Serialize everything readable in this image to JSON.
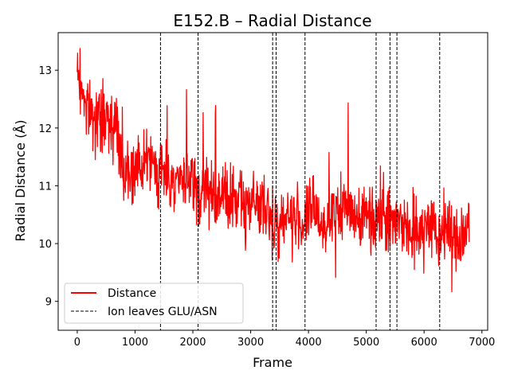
{
  "chart_data": {
    "type": "line",
    "title": "E152.B – Radial Distance",
    "xlabel": "Frame",
    "ylabel": "Radial Distance (Å)",
    "xlim": [
      -330,
      7100
    ],
    "ylim": [
      8.5,
      13.65
    ],
    "xticks": [
      0,
      1000,
      2000,
      3000,
      4000,
      5000,
      6000,
      7000
    ],
    "xtick_labels": [
      "0",
      "1000",
      "2000",
      "3000",
      "4000",
      "5000",
      "6000",
      "7000"
    ],
    "yticks": [
      9,
      10,
      11,
      12,
      13
    ],
    "ytick_labels": [
      "9",
      "10",
      "11",
      "12",
      "13"
    ],
    "grid": false,
    "legend_position": "lower-left",
    "series": [
      {
        "name": "Distance",
        "color": "#ff0000",
        "style": "solid",
        "x": [
          0,
          100,
          200,
          300,
          400,
          500,
          600,
          700,
          800,
          900,
          1000,
          1100,
          1200,
          1300,
          1400,
          1500,
          1600,
          1700,
          1800,
          1900,
          2000,
          2100,
          2200,
          2300,
          2400,
          2500,
          2600,
          2700,
          2800,
          2900,
          3000,
          3100,
          3200,
          3300,
          3400,
          3500,
          3600,
          3700,
          3800,
          3900,
          4000,
          4100,
          4200,
          4300,
          4400,
          4500,
          4600,
          4700,
          4800,
          4900,
          5000,
          5100,
          5200,
          5300,
          5400,
          5500,
          5600,
          5700,
          5800,
          5900,
          6000,
          6100,
          6200,
          6300,
          6400,
          6500,
          6600,
          6700,
          6780
        ],
        "y": [
          13.0,
          12.6,
          12.3,
          12.2,
          12.1,
          12.2,
          12.1,
          12.0,
          11.2,
          11.3,
          11.4,
          11.3,
          11.4,
          11.3,
          11.2,
          11.3,
          11.1,
          11.2,
          11.0,
          11.1,
          11.0,
          10.8,
          11.0,
          10.9,
          10.9,
          10.8,
          10.9,
          10.7,
          10.8,
          10.6,
          10.8,
          10.7,
          10.6,
          10.5,
          10.4,
          10.3,
          10.5,
          10.4,
          10.5,
          10.3,
          10.5,
          10.6,
          10.4,
          10.3,
          10.4,
          10.5,
          10.6,
          10.7,
          10.5,
          10.4,
          10.6,
          10.5,
          10.4,
          10.7,
          10.3,
          10.5,
          10.4,
          10.3,
          10.1,
          10.2,
          10.3,
          10.4,
          10.0,
          10.2,
          10.3,
          10.1,
          10.0,
          10.2,
          10.3
        ],
        "noise_amplitude": 0.45
      },
      {
        "name": "Ion leaves GLU/ASN",
        "color": "#000000",
        "style": "dashed",
        "vlines_x": [
          1440,
          2090,
          3380,
          3440,
          3940,
          5170,
          5410,
          5530,
          6270
        ]
      }
    ]
  }
}
